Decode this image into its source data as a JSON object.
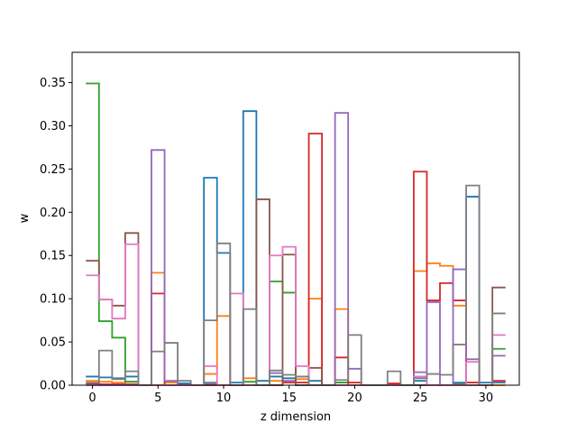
{
  "chart_data": {
    "type": "step",
    "xlabel": "z dimension",
    "ylabel": "w",
    "xlim": [
      -1.55,
      32.55
    ],
    "ylim": [
      0,
      0.385
    ],
    "x_ticks": [
      0,
      5,
      10,
      15,
      20,
      25,
      30
    ],
    "y_ticks": [
      0.0,
      0.05,
      0.1,
      0.15,
      0.2,
      0.25,
      0.3,
      0.35
    ],
    "x_tick_labels": [
      "0",
      "5",
      "10",
      "15",
      "20",
      "25",
      "30"
    ],
    "y_tick_labels": [
      "0.00",
      "0.05",
      "0.10",
      "0.15",
      "0.20",
      "0.25",
      "0.30",
      "0.35"
    ],
    "grid": false,
    "legend": "none",
    "x": [
      0,
      1,
      2,
      3,
      4,
      5,
      6,
      7,
      8,
      9,
      10,
      11,
      12,
      13,
      14,
      15,
      16,
      17,
      18,
      19,
      20,
      21,
      22,
      23,
      24,
      25,
      26,
      27,
      28,
      29,
      30,
      31
    ],
    "series": [
      {
        "color": "#1f77b4",
        "values": [
          0.01,
          0.009,
          0.008,
          0.01,
          0,
          0,
          0.003,
          0.002,
          0,
          0.24,
          0.153,
          0.003,
          0.317,
          0.005,
          0.01,
          0.008,
          0.01,
          0.005,
          0,
          0.003,
          0,
          0,
          0,
          0,
          0,
          0.005,
          0,
          0,
          0.003,
          0.218,
          0.003,
          0.003
        ]
      },
      {
        "color": "#ff7f0e",
        "values": [
          0.005,
          0.004,
          0.003,
          0.004,
          0,
          0.13,
          0.003,
          0,
          0,
          0.013,
          0.08,
          0,
          0.008,
          0,
          0.005,
          0.003,
          0.007,
          0.1,
          0,
          0.088,
          0.003,
          0,
          0,
          0,
          0,
          0.132,
          0.141,
          0.138,
          0.092,
          0.03,
          0,
          0
        ]
      },
      {
        "color": "#2ca02c",
        "values": [
          0.349,
          0.074,
          0.055,
          0.004,
          0,
          0,
          0,
          0,
          0,
          0.003,
          0,
          0,
          0.004,
          0,
          0.12,
          0.107,
          0.003,
          0,
          0,
          0.003,
          0,
          0,
          0,
          0,
          0,
          0,
          0,
          0,
          0.001,
          0.003,
          0,
          0.042
        ]
      },
      {
        "color": "#d62728",
        "values": [
          0.002,
          0.001,
          0.001,
          0.001,
          0,
          0.106,
          0,
          0,
          0,
          0,
          0,
          0,
          0,
          0,
          0,
          0.003,
          0.003,
          0.291,
          0,
          0.032,
          0.003,
          0,
          0,
          0.002,
          0,
          0.247,
          0.098,
          0.118,
          0.098,
          0.003,
          0,
          0.005
        ]
      },
      {
        "color": "#9467bd",
        "values": [
          0,
          0,
          0,
          0,
          0,
          0.272,
          0.005,
          0,
          0,
          0.002,
          0,
          0,
          0,
          0,
          0.014,
          0.005,
          0,
          0,
          0,
          0.315,
          0.019,
          0,
          0,
          0,
          0,
          0.015,
          0.096,
          0,
          0.134,
          0.03,
          0,
          0.034
        ]
      },
      {
        "color": "#8c564b",
        "values": [
          0.144,
          0.099,
          0.092,
          0.176,
          0,
          0,
          0,
          0,
          0,
          0,
          0,
          0,
          0,
          0.215,
          0,
          0.151,
          0,
          0.02,
          0,
          0,
          0,
          0,
          0,
          0,
          0,
          0,
          0,
          0,
          0,
          0,
          0,
          0.113
        ]
      },
      {
        "color": "#e377c2",
        "values": [
          0.127,
          0.099,
          0.077,
          0.163,
          0,
          0,
          0,
          0,
          0,
          0.022,
          0,
          0.106,
          0,
          0,
          0.15,
          0.16,
          0.022,
          0,
          0,
          0,
          0,
          0,
          0,
          0,
          0,
          0.01,
          0,
          0,
          0,
          0.027,
          0,
          0.058
        ]
      },
      {
        "color": "#7f7f7f",
        "values": [
          0.003,
          0.04,
          0.007,
          0.016,
          0,
          0.039,
          0.049,
          0.005,
          0,
          0.075,
          0.164,
          0,
          0.088,
          0,
          0.017,
          0.012,
          0.01,
          0,
          0,
          0.006,
          0.058,
          0,
          0,
          0.016,
          0,
          0.008,
          0.013,
          0.012,
          0.047,
          0.231,
          0,
          0.083
        ]
      }
    ]
  }
}
